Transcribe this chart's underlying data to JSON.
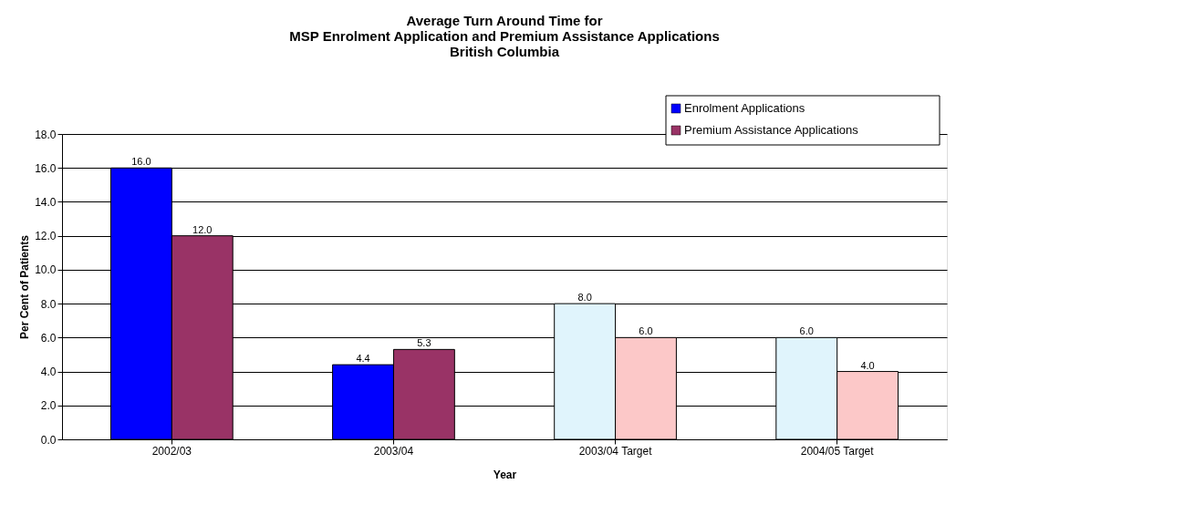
{
  "chart_data": {
    "type": "bar",
    "title": [
      "Average Turn Around Time for",
      "MSP Enrolment Application and Premium Assistance Applications",
      "British Columbia"
    ],
    "xlabel": "Year",
    "ylabel": "Per Cent of Patients",
    "categories": [
      "2002/03",
      "2003/04",
      "2003/04 Target",
      "2004/05 Target"
    ],
    "series": [
      {
        "name": "Enrolment Applications",
        "color": "#0000ff",
        "colors": [
          "#0000ff",
          "#0000ff",
          "#e0f4fc",
          "#e0f4fc"
        ],
        "values": [
          16.0,
          4.4,
          8.0,
          6.0
        ],
        "value_labels": [
          "16.0",
          "4.4",
          "8.0",
          "6.0"
        ]
      },
      {
        "name": "Premium Assistance Applications",
        "color": "#993366",
        "colors": [
          "#993366",
          "#993366",
          "#fcc8c8",
          "#fcc8c8"
        ],
        "values": [
          12.0,
          5.3,
          6.0,
          4.0
        ],
        "value_labels": [
          "12.0",
          "5.3",
          "6.0",
          "4.0"
        ]
      }
    ],
    "ylim": [
      0,
      18
    ],
    "yticks": [
      {
        "value": 0,
        "label": "0.0"
      },
      {
        "value": 2,
        "label": "2.0"
      },
      {
        "value": 4,
        "label": "4.0"
      },
      {
        "value": 6,
        "label": "6.0"
      },
      {
        "value": 8,
        "label": "8.0"
      },
      {
        "value": 10,
        "label": "10.0"
      },
      {
        "value": 12,
        "label": "12.0"
      },
      {
        "value": 14,
        "label": "14.0"
      },
      {
        "value": 16,
        "label": "16.0"
      },
      {
        "value": 18,
        "label": "18.0"
      }
    ],
    "grid": "y",
    "legend": "top right"
  }
}
